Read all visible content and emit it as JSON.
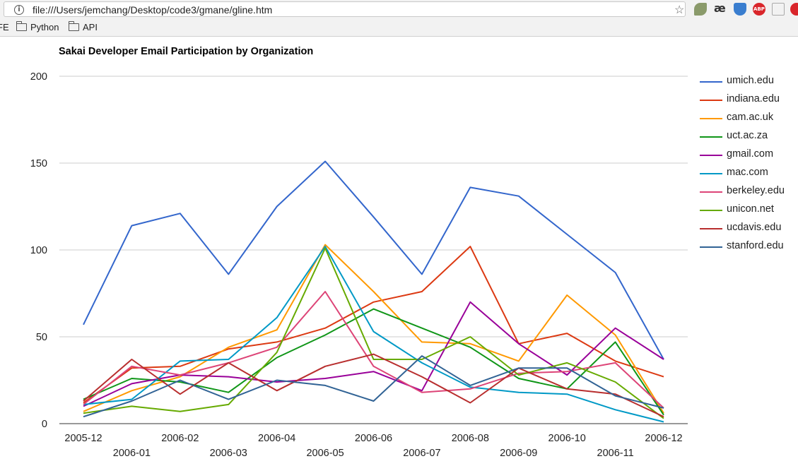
{
  "browser": {
    "url": "file:///Users/jemchang/Desktop/code3/gmane/gline.htm",
    "bookmarks": [
      {
        "label": "FE"
      },
      {
        "label": "Python"
      },
      {
        "label": "API"
      }
    ],
    "extensions": {
      "ae_label": "æ",
      "abp_label": "ABP"
    }
  },
  "chart_data": {
    "type": "line",
    "title": "Sakai Developer Email Participation by Organization",
    "xlabel": "",
    "ylabel": "",
    "categories": [
      "2005-12",
      "2006-01",
      "2006-02",
      "2006-03",
      "2006-04",
      "2006-05",
      "2006-06",
      "2006-07",
      "2006-08",
      "2006-09",
      "2006-10",
      "2006-11",
      "2006-12"
    ],
    "ylim": [
      0,
      200
    ],
    "yticks": [
      "0",
      "50",
      "100",
      "150",
      "200"
    ],
    "grid": true,
    "legend_position": "right",
    "series": [
      {
        "name": "umich.edu",
        "color": "#3366cc",
        "values": [
          57,
          114,
          121,
          86,
          125,
          151,
          119,
          86,
          136,
          131,
          109,
          87,
          37
        ]
      },
      {
        "name": "indiana.edu",
        "color": "#dc3912",
        "values": [
          12,
          32,
          33,
          43,
          47,
          55,
          70,
          76,
          102,
          46,
          52,
          36,
          27
        ]
      },
      {
        "name": "cam.ac.uk",
        "color": "#ff9900",
        "values": [
          7,
          19,
          27,
          44,
          54,
          103,
          76,
          47,
          46,
          36,
          74,
          51,
          6
        ]
      },
      {
        "name": "uct.ac.za",
        "color": "#109618",
        "values": [
          14,
          26,
          24,
          18,
          38,
          51,
          66,
          55,
          44,
          26,
          20,
          47,
          5
        ]
      },
      {
        "name": "gmail.com",
        "color": "#990099",
        "values": [
          10,
          23,
          28,
          27,
          24,
          26,
          30,
          19,
          70,
          46,
          28,
          55,
          37
        ]
      },
      {
        "name": "mac.com",
        "color": "#0099c6",
        "values": [
          11,
          14,
          36,
          37,
          61,
          102,
          53,
          35,
          21,
          18,
          17,
          8,
          1
        ]
      },
      {
        "name": "berkeley.edu",
        "color": "#dd4477",
        "values": [
          11,
          33,
          28,
          35,
          44,
          76,
          33,
          18,
          20,
          29,
          30,
          35,
          9
        ]
      },
      {
        "name": "unicon.net",
        "color": "#66aa00",
        "values": [
          6,
          10,
          7,
          11,
          41,
          101,
          37,
          37,
          50,
          28,
          35,
          24,
          3
        ]
      },
      {
        "name": "ucdavis.edu",
        "color": "#b82e2e",
        "values": [
          13,
          37,
          17,
          35,
          19,
          33,
          40,
          27,
          12,
          32,
          20,
          17,
          4
        ]
      },
      {
        "name": "stanford.edu",
        "color": "#316395",
        "values": [
          4,
          13,
          25,
          14,
          25,
          22,
          13,
          39,
          22,
          32,
          32,
          16,
          9
        ]
      }
    ]
  }
}
